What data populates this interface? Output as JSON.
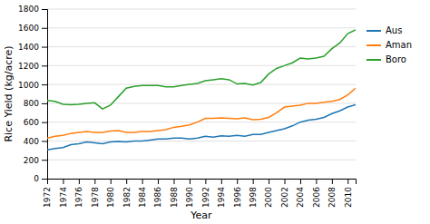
{
  "chart_data": {
    "type": "line",
    "xlabel": "Year",
    "ylabel": "Rice Yield (kg/acre)",
    "x": [
      1972,
      1973,
      1974,
      1975,
      1976,
      1977,
      1978,
      1979,
      1980,
      1981,
      1982,
      1983,
      1984,
      1985,
      1986,
      1987,
      1988,
      1989,
      1990,
      1991,
      1992,
      1993,
      1994,
      1995,
      1996,
      1997,
      1998,
      1999,
      2000,
      2001,
      2002,
      2003,
      2004,
      2005,
      2006,
      2007,
      2008,
      2009,
      2010,
      2011
    ],
    "series": [
      {
        "name": "Aus",
        "values": [
          305,
          320,
          330,
          360,
          370,
          390,
          380,
          370,
          390,
          395,
          390,
          400,
          400,
          410,
          420,
          420,
          430,
          430,
          420,
          430,
          450,
          440,
          455,
          450,
          460,
          450,
          470,
          470,
          490,
          510,
          530,
          560,
          600,
          620,
          630,
          650,
          690,
          720,
          760,
          785
        ]
      },
      {
        "name": "Aman",
        "values": [
          430,
          450,
          460,
          480,
          490,
          500,
          490,
          490,
          505,
          510,
          490,
          490,
          500,
          500,
          510,
          520,
          545,
          555,
          570,
          600,
          640,
          640,
          645,
          640,
          635,
          645,
          625,
          630,
          650,
          700,
          760,
          770,
          780,
          800,
          800,
          810,
          820,
          840,
          890,
          960
        ]
      },
      {
        "name": "Boro",
        "values": [
          830,
          820,
          790,
          785,
          790,
          800,
          805,
          740,
          780,
          870,
          960,
          980,
          990,
          990,
          990,
          975,
          975,
          990,
          1000,
          1010,
          1040,
          1050,
          1060,
          1050,
          1005,
          1010,
          995,
          1020,
          1110,
          1170,
          1200,
          1230,
          1280,
          1270,
          1280,
          1300,
          1380,
          1440,
          1540,
          1580
        ]
      }
    ],
    "xlim": [
      1972,
      2011
    ],
    "xticks": [
      1972,
      1974,
      1976,
      1978,
      1980,
      1982,
      1984,
      1986,
      1988,
      1990,
      1992,
      1994,
      1996,
      1998,
      2000,
      2002,
      2004,
      2006,
      2008,
      2010
    ],
    "ylim": [
      0,
      1800
    ],
    "yticks": [
      0,
      200,
      400,
      600,
      800,
      1000,
      1200,
      1400,
      1600,
      1800
    ],
    "grid": true,
    "legend": "right"
  }
}
